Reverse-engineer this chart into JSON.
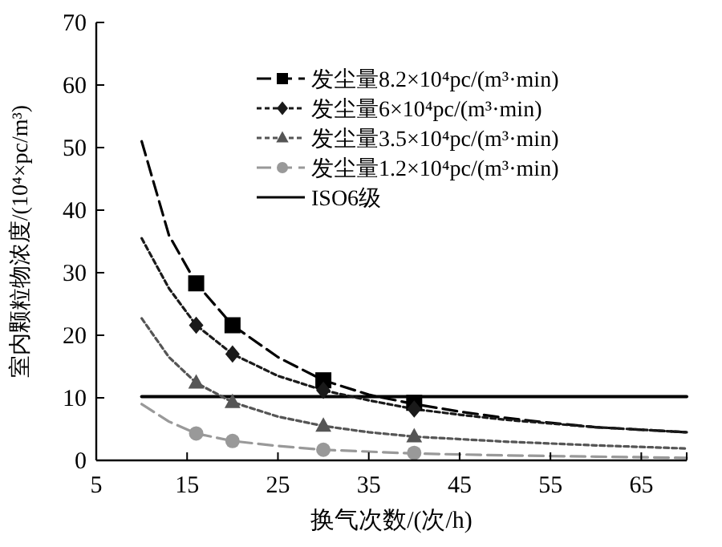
{
  "chart_data": {
    "type": "scatter",
    "xlabel": "换气次数/(次/h)",
    "ylabel": "室内颗粒物浓度/(10⁴×pc/m³)",
    "xlim": [
      5,
      70
    ],
    "ylim": [
      0,
      70
    ],
    "xticks": [
      5,
      15,
      25,
      35,
      45,
      55,
      65
    ],
    "yticks": [
      0,
      10,
      20,
      30,
      40,
      50,
      60,
      70
    ],
    "grid": false,
    "legend": "top right",
    "series": [
      {
        "name": "发尘量8.2×10⁴pc/(m³·min)",
        "color": "#000000",
        "marker": "square",
        "line_style": "dashed",
        "x": [
          16,
          20,
          30,
          40
        ],
        "values": [
          28.3,
          21.6,
          12.8,
          9.2
        ]
      },
      {
        "name": "发尘量6×10⁴pc/(m³·min)",
        "color": "#1a1a1a",
        "marker": "diamond",
        "line_style": "dotted",
        "x": [
          16,
          20,
          30,
          40
        ],
        "values": [
          21.6,
          17,
          11.2,
          8.2
        ]
      },
      {
        "name": "发尘量3.5×10⁴pc/(m³·min)",
        "color": "#555555",
        "marker": "triangle",
        "line_style": "dotted",
        "x": [
          16,
          20,
          30,
          40
        ],
        "values": [
          12.4,
          9.3,
          5.5,
          3.8
        ]
      },
      {
        "name": "发尘量1.2×10⁴pc/(m³·min)",
        "color": "#999999",
        "marker": "circle",
        "line_style": "dashed",
        "x": [
          16,
          20,
          30,
          40
        ],
        "values": [
          4.3,
          3.1,
          1.7,
          1.2
        ]
      },
      {
        "type": "line",
        "name": "ISO6级",
        "color": "#000000",
        "marker": "none",
        "line_style": "solid",
        "x": [
          10,
          70
        ],
        "values": [
          10.2,
          10.2
        ]
      },
      {
        "type": "line",
        "color": "#000000",
        "marker": "none",
        "line_style": "dashed",
        "x": [
          10,
          13,
          16,
          20,
          25,
          30,
          35,
          40,
          45,
          50,
          55,
          60,
          65,
          70
        ],
        "values": [
          51,
          36,
          28.3,
          21.6,
          16.5,
          12.8,
          10.5,
          9,
          7.8,
          6.8,
          6,
          5.3,
          4.9,
          4.5
        ]
      },
      {
        "type": "line",
        "color": "#1a1a1a",
        "marker": "none",
        "line_style": "dotted",
        "x": [
          10,
          13,
          16,
          20,
          25,
          30,
          35,
          40,
          45,
          50,
          55,
          60,
          65,
          70
        ],
        "values": [
          35.5,
          27.5,
          21.6,
          17,
          13.5,
          11.2,
          9.6,
          8.2,
          7.3,
          6.5,
          5.9,
          5.3,
          4.9,
          4.5
        ]
      },
      {
        "type": "line",
        "color": "#555555",
        "marker": "none",
        "line_style": "dotted",
        "x": [
          10,
          13,
          16,
          20,
          25,
          30,
          35,
          40,
          50,
          60,
          70
        ],
        "values": [
          22.7,
          16.5,
          12.4,
          9.3,
          7,
          5.5,
          4.5,
          3.8,
          3,
          2.4,
          1.9
        ]
      },
      {
        "type": "line",
        "color": "#999999",
        "marker": "none",
        "line_style": "dashed",
        "x": [
          10,
          13,
          16,
          20,
          25,
          30,
          40,
          50,
          60,
          70
        ],
        "values": [
          9,
          6.2,
          4.3,
          3.1,
          2.3,
          1.7,
          1.1,
          0.8,
          0.6,
          0.4
        ]
      }
    ]
  }
}
